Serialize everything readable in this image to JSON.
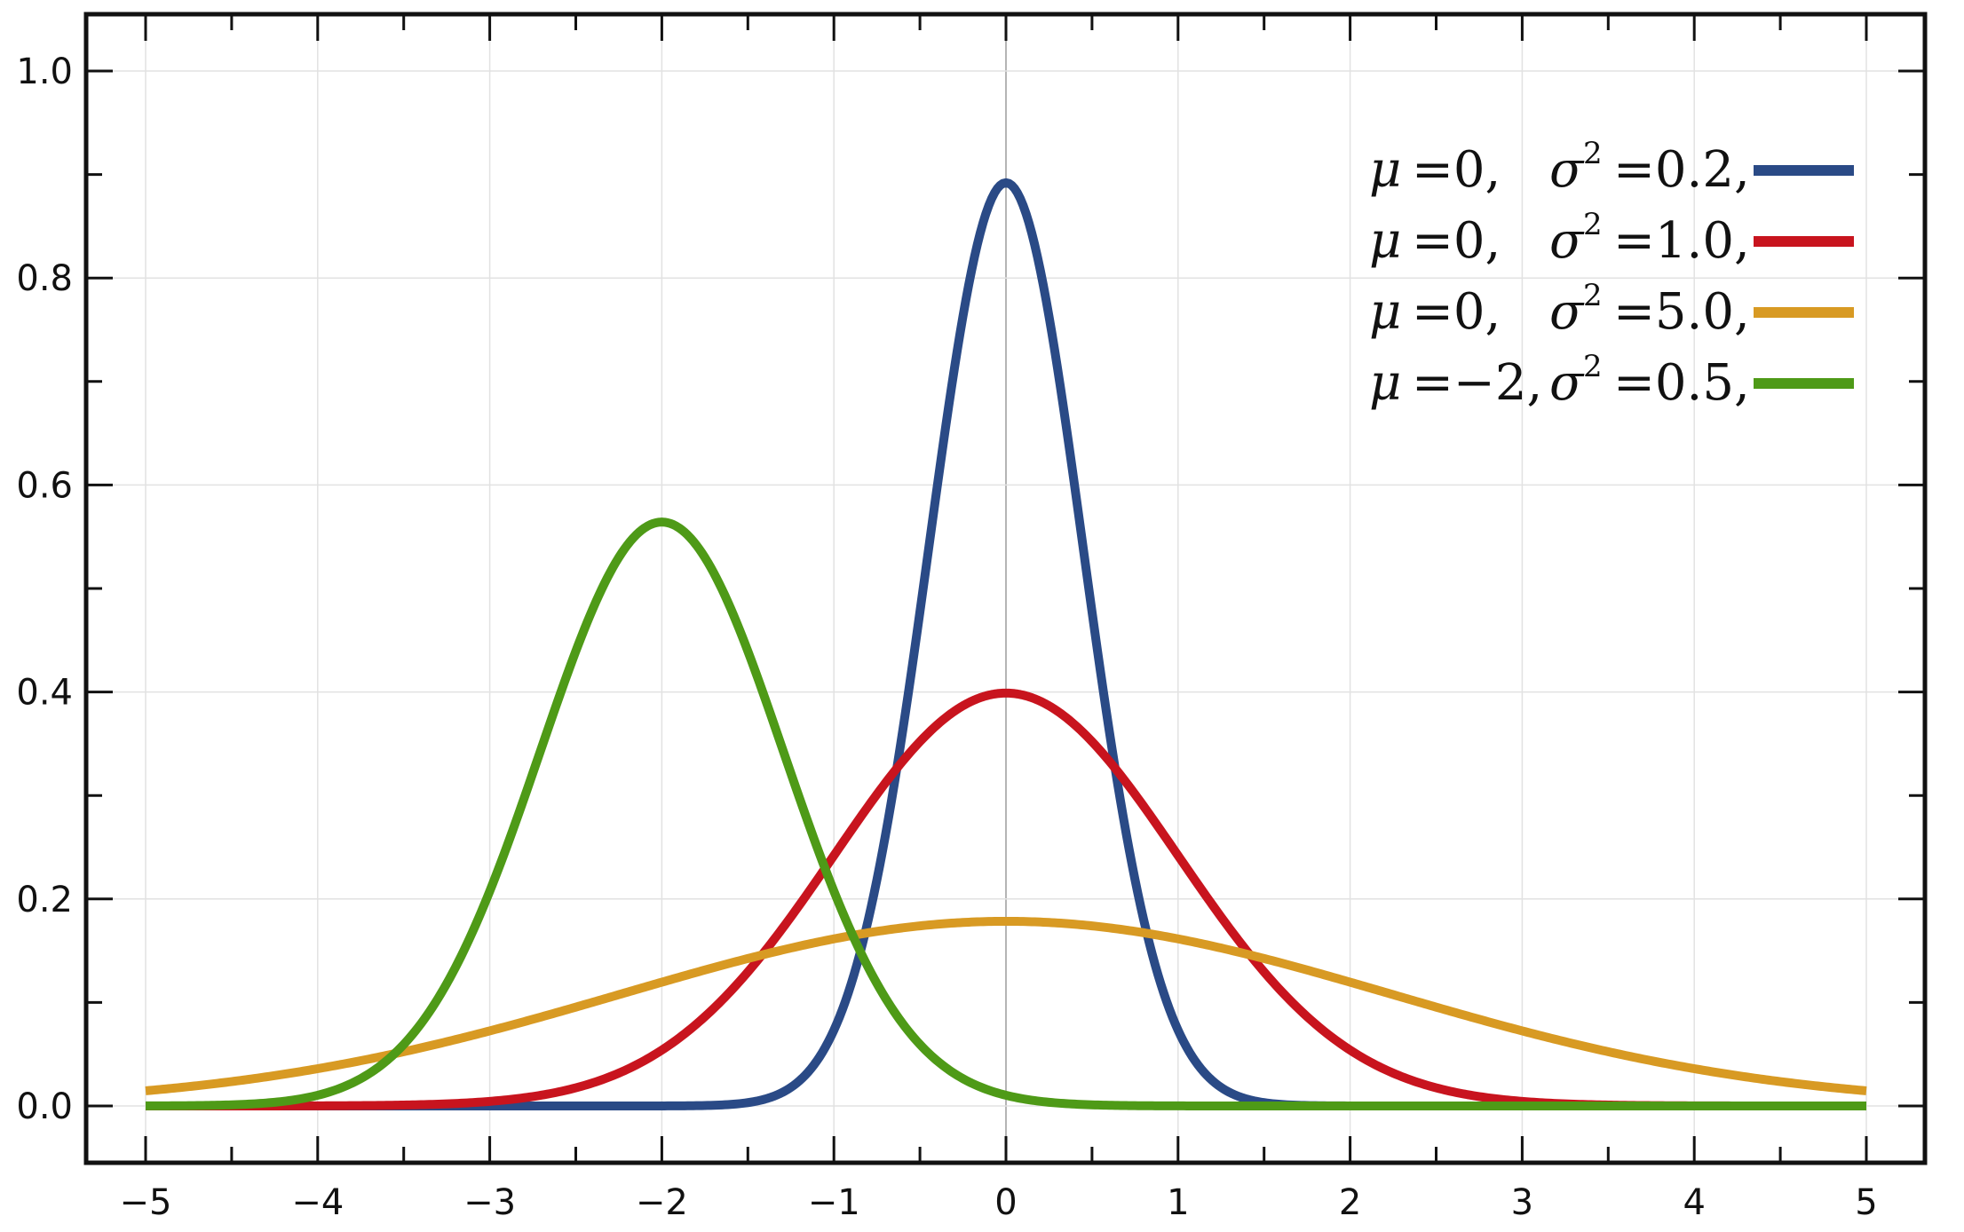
{
  "chart_data": {
    "type": "line",
    "title": "",
    "xlabel": "",
    "ylabel": "",
    "xlim": [
      -5,
      5
    ],
    "ylim": [
      0,
      1.0
    ],
    "grid": true,
    "legend_position": "top-right",
    "x_ticks": [
      -5,
      -4,
      -3,
      -2,
      -1,
      0,
      1,
      2,
      3,
      4,
      5
    ],
    "x_tick_labels": [
      "−5",
      "−4",
      "−3",
      "−2",
      "−1",
      "0",
      "1",
      "2",
      "3",
      "4",
      "5"
    ],
    "y_ticks": [
      0.0,
      0.2,
      0.4,
      0.6,
      0.8,
      1.0
    ],
    "y_tick_labels": [
      "0.0",
      "0.2",
      "0.4",
      "0.6",
      "0.8",
      "1.0"
    ],
    "series": [
      {
        "mu": 0,
        "sigma2": 0.2,
        "color": "#2a4a86",
        "legend": {
          "mu_symbol": "μ",
          "mu_value": "=0,",
          "sigma_symbol": "σ",
          "sigma_exp": "2",
          "sigma_value": "=0.2,"
        }
      },
      {
        "mu": 0,
        "sigma2": 1.0,
        "color": "#c8141e",
        "legend": {
          "mu_symbol": "μ",
          "mu_value": "=0,",
          "sigma_symbol": "σ",
          "sigma_exp": "2",
          "sigma_value": "=1.0,"
        }
      },
      {
        "mu": 0,
        "sigma2": 5.0,
        "color": "#d89a23",
        "legend": {
          "mu_symbol": "μ",
          "mu_value": "=0,",
          "sigma_symbol": "σ",
          "sigma_exp": "2",
          "sigma_value": "=5.0,"
        }
      },
      {
        "mu": -2,
        "sigma2": 0.5,
        "color": "#4e9a17",
        "legend": {
          "mu_symbol": "μ",
          "mu_value": "=−2,",
          "sigma_symbol": "σ",
          "sigma_exp": "2",
          "sigma_value": "=0.5,"
        }
      }
    ]
  },
  "colors": {
    "frame": "#111111",
    "grid": "#e2e2e2",
    "zero_line": "#b5b5b5",
    "background": "#ffffff"
  }
}
